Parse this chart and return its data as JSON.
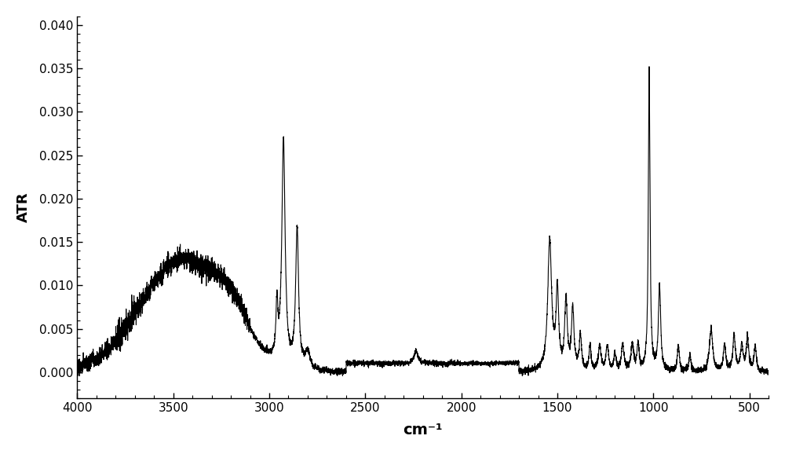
{
  "xlabel": "cm⁻¹",
  "ylabel": "ATR",
  "xlim": [
    4000,
    400
  ],
  "ylim": [
    -0.003,
    0.041
  ],
  "yticks": [
    0.0,
    0.005,
    0.01,
    0.015,
    0.02,
    0.025,
    0.03,
    0.035,
    0.04
  ],
  "xticks": [
    4000,
    3500,
    3000,
    2500,
    2000,
    1500,
    1000,
    500
  ],
  "line_color": "#000000",
  "background_color": "#ffffff",
  "line_width": 0.8
}
